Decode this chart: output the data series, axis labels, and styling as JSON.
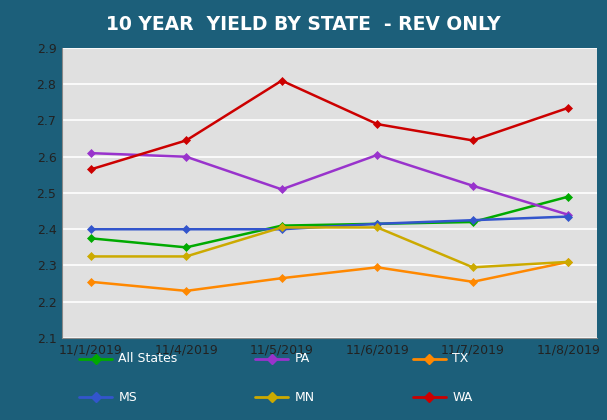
{
  "title": "10 YEAR  YIELD BY STATE  - REV ONLY",
  "x_labels": [
    "11/1/2019",
    "11/4/2019",
    "11/5/2019",
    "11/6/2019",
    "11/7/2019",
    "11/8/2019"
  ],
  "series": {
    "All States": {
      "values": [
        2.375,
        2.35,
        2.41,
        2.415,
        2.42,
        2.49
      ],
      "color": "#00aa00"
    },
    "PA": {
      "values": [
        2.61,
        2.6,
        2.51,
        2.605,
        2.52,
        2.44
      ],
      "color": "#9933cc"
    },
    "TX": {
      "values": [
        2.255,
        2.23,
        2.265,
        2.295,
        2.255,
        2.31
      ],
      "color": "#ff8800"
    },
    "MS": {
      "values": [
        2.4,
        2.4,
        2.4,
        2.415,
        2.425,
        2.435
      ],
      "color": "#3355cc"
    },
    "MN": {
      "values": [
        2.325,
        2.325,
        2.405,
        2.405,
        2.295,
        2.31
      ],
      "color": "#ccaa00"
    },
    "WA": {
      "values": [
        2.565,
        2.645,
        2.81,
        2.69,
        2.645,
        2.735
      ],
      "color": "#cc0000"
    }
  },
  "ylim": [
    2.1,
    2.9
  ],
  "yticks": [
    2.1,
    2.2,
    2.3,
    2.4,
    2.5,
    2.6,
    2.7,
    2.8,
    2.9
  ],
  "plot_bg_color": "#e0e0e0",
  "outer_bg_color": "#1c5f7a",
  "title_color": "#ffffff",
  "legend_order": [
    "All States",
    "PA",
    "TX",
    "MS",
    "MN",
    "WA"
  ],
  "title_fontsize": 13.5,
  "tick_fontsize": 9.0
}
